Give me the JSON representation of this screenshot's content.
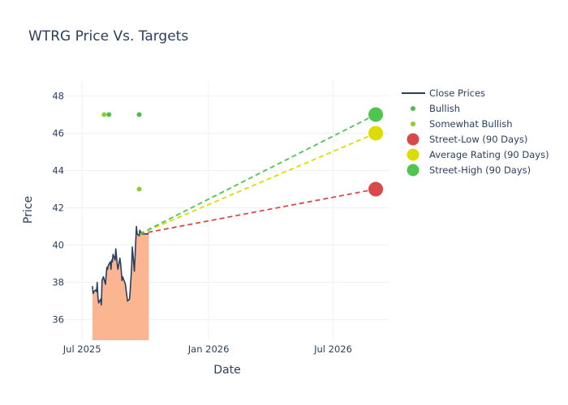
{
  "chart_data": {
    "type": "line",
    "title": "WTRG Price Vs. Targets",
    "xlabel": "Date",
    "ylabel": "Price",
    "xlim": [
      "2025-06-06",
      "2026-09-21"
    ],
    "ylim": [
      34.9,
      48.8
    ],
    "x_ticks": [
      {
        "date": "2025-07-01",
        "label": "Jul 2025"
      },
      {
        "date": "2026-01-01",
        "label": "Jan 2026"
      },
      {
        "date": "2026-07-01",
        "label": "Jul 2026"
      }
    ],
    "y_ticks": [
      36,
      38,
      40,
      42,
      44,
      46,
      48
    ],
    "grid": true,
    "legend_position": "top-right",
    "colors": {
      "close": "#2a3f5f",
      "fill": "#fbb590",
      "bullish": "#4bbf4b",
      "somewhat_bullish": "#8ccf2d",
      "street_low": "#d84a4a",
      "average": "#dcdc00",
      "street_high": "#4fc44f"
    },
    "close_prices": {
      "name": "Close Prices",
      "x": [
        "2025-07-16",
        "2025-07-17",
        "2025-07-18",
        "2025-07-21",
        "2025-07-22",
        "2025-07-23",
        "2025-07-24",
        "2025-07-25",
        "2025-07-28",
        "2025-07-29",
        "2025-07-30",
        "2025-07-31",
        "2025-08-01",
        "2025-08-04",
        "2025-08-05",
        "2025-08-06",
        "2025-08-07",
        "2025-08-08",
        "2025-08-11",
        "2025-08-12",
        "2025-08-13",
        "2025-08-14",
        "2025-08-15",
        "2025-08-18",
        "2025-08-19",
        "2025-08-20",
        "2025-08-21",
        "2025-08-22",
        "2025-08-25",
        "2025-08-26",
        "2025-08-27",
        "2025-08-28",
        "2025-08-29",
        "2025-09-02",
        "2025-09-03",
        "2025-09-04",
        "2025-09-05",
        "2025-09-08",
        "2025-09-09",
        "2025-09-10",
        "2025-09-11",
        "2025-09-12",
        "2025-09-15",
        "2025-09-16",
        "2025-09-17",
        "2025-09-18",
        "2025-09-19",
        "2025-09-22",
        "2025-09-23",
        "2025-09-24",
        "2025-09-25",
        "2025-09-26",
        "2025-09-29",
        "2025-09-30",
        "2025-10-01",
        "2025-10-02",
        "2025-10-03",
        "2025-10-06"
      ],
      "y": [
        37.8,
        37.4,
        37.5,
        37.6,
        37.5,
        38.0,
        37.2,
        36.9,
        37.1,
        36.8,
        38.1,
        38.2,
        38.3,
        37.9,
        38.4,
        38.8,
        38.7,
        38.9,
        39.1,
        38.7,
        39.2,
        39.1,
        39.5,
        39.2,
        39.8,
        39.4,
        39.0,
        38.7,
        39.3,
        39.0,
        38.6,
        38.1,
        38.3,
        37.9,
        37.6,
        37.3,
        37.0,
        37.1,
        37.6,
        38.2,
        38.8,
        39.9,
        38.6,
        39.4,
        40.2,
        41.0,
        40.6,
        40.5,
        40.8,
        40.6,
        40.7,
        40.6,
        40.6,
        40.6,
        40.6,
        40.6,
        40.6,
        40.6
      ]
    },
    "bullish": {
      "name": "Bullish",
      "x": [
        "2025-08-09",
        "2025-09-22"
      ],
      "y": [
        47,
        47
      ]
    },
    "somewhat_bullish": {
      "name": "Somewhat Bullish",
      "x": [
        "2025-08-02",
        "2025-09-22"
      ],
      "y": [
        47,
        43
      ]
    },
    "targets": {
      "start": {
        "x": "2025-09-23",
        "y": 40.6
      },
      "end_x": "2026-09-01",
      "street_low": {
        "name": "Street-Low (90 Days)",
        "y": 43
      },
      "average": {
        "name": "Average Rating (90 Days)",
        "y": 46
      },
      "street_high": {
        "name": "Street-High (90 Days)",
        "y": 47
      }
    }
  }
}
